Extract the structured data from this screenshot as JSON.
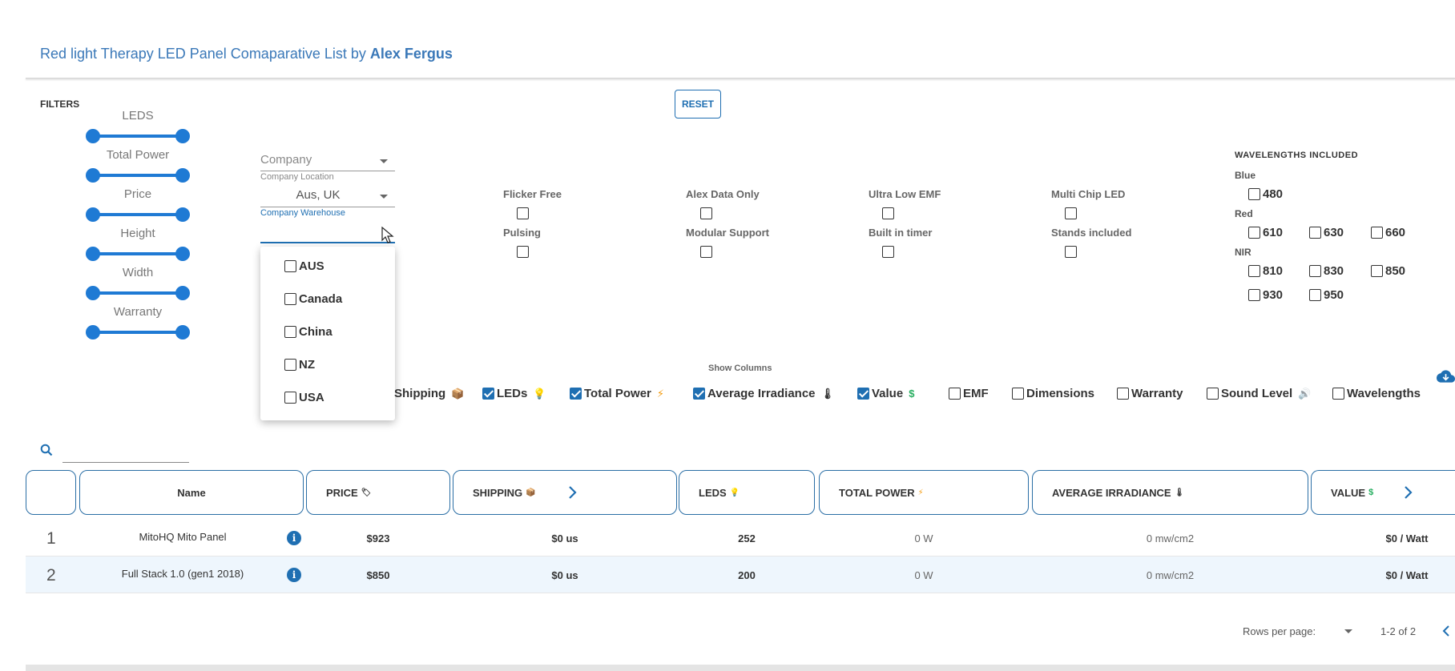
{
  "header": {
    "title": "Red light Therapy LED Panel Comaparative List by ",
    "author": "Alex Fergus"
  },
  "filters": {
    "label": "FILTERS",
    "reset_label": "RESET",
    "sliders": [
      {
        "label": "LEDS"
      },
      {
        "label": "Total Power"
      },
      {
        "label": "Price"
      },
      {
        "label": "Height"
      },
      {
        "label": "Width"
      },
      {
        "label": "Warranty"
      }
    ],
    "company": {
      "placeholder": "Company"
    },
    "company_location": {
      "label": "Company Location",
      "value": "Aus, UK"
    },
    "company_warehouse": {
      "label": "Company Warehouse",
      "value": ""
    },
    "warehouse_options": [
      "AUS",
      "Canada",
      "China",
      "NZ",
      "USA"
    ],
    "flags": [
      {
        "label": "Flicker Free"
      },
      {
        "label": "Alex Data Only"
      },
      {
        "label": "Ultra Low EMF"
      },
      {
        "label": "Multi Chip LED"
      },
      {
        "label": "Pulsing"
      },
      {
        "label": "Modular Support"
      },
      {
        "label": "Built in timer"
      },
      {
        "label": "Stands included"
      }
    ]
  },
  "wavelengths": {
    "title": "WAVELENGTHS INCLUDED",
    "blue": {
      "label": "Blue",
      "items": [
        "480"
      ]
    },
    "red": {
      "label": "Red",
      "items": [
        "610",
        "630",
        "660"
      ]
    },
    "nir": {
      "label": "NIR",
      "items": [
        "810",
        "830",
        "850",
        "930",
        "950"
      ]
    }
  },
  "columns": {
    "label": "Show Columns",
    "items": [
      {
        "label": "Shipping",
        "checked": true,
        "icon": "📦"
      },
      {
        "label": "LEDs",
        "checked": true,
        "icon": "💡"
      },
      {
        "label": "Total Power",
        "checked": true,
        "icon": "⚡"
      },
      {
        "label": "Average Irradiance",
        "checked": true,
        "icon": "🌡"
      },
      {
        "label": "Value",
        "checked": true,
        "icon": "$"
      },
      {
        "label": "EMF",
        "checked": false,
        "icon": ""
      },
      {
        "label": "Dimensions",
        "checked": false,
        "icon": ""
      },
      {
        "label": "Warranty",
        "checked": false,
        "icon": ""
      },
      {
        "label": "Sound Level",
        "checked": false,
        "icon": "🔊"
      },
      {
        "label": "Wavelengths",
        "checked": false,
        "icon": ""
      }
    ]
  },
  "table": {
    "headers": {
      "name": "Name",
      "price": "PRICE",
      "shipping": "SHIPPING",
      "leds": "LEDS",
      "total_power": "TOTAL POWER",
      "avg_irradiance": "AVERAGE IRRADIANCE",
      "value": "VALUE"
    },
    "rows": [
      {
        "num": "1",
        "name": "MitoHQ Mito Panel",
        "price": "$923",
        "shipping": "$0 us",
        "leds": "252",
        "power": "0 W",
        "irradiance": "0 mw/cm2",
        "value": "$0 / Watt"
      },
      {
        "num": "2",
        "name": "Full Stack 1.0 (gen1 2018)",
        "price": "$850",
        "shipping": "$0 us",
        "leds": "200",
        "power": "0 W",
        "irradiance": "0 mw/cm2",
        "value": "$0 / Watt"
      }
    ]
  },
  "footer": {
    "rows_per_page": "Rows per page:",
    "range": "1-2 of 2"
  },
  "colors": {
    "accent": "#1f6fb2",
    "title": "#3a78b8",
    "row_alt": "#eef6fd"
  }
}
